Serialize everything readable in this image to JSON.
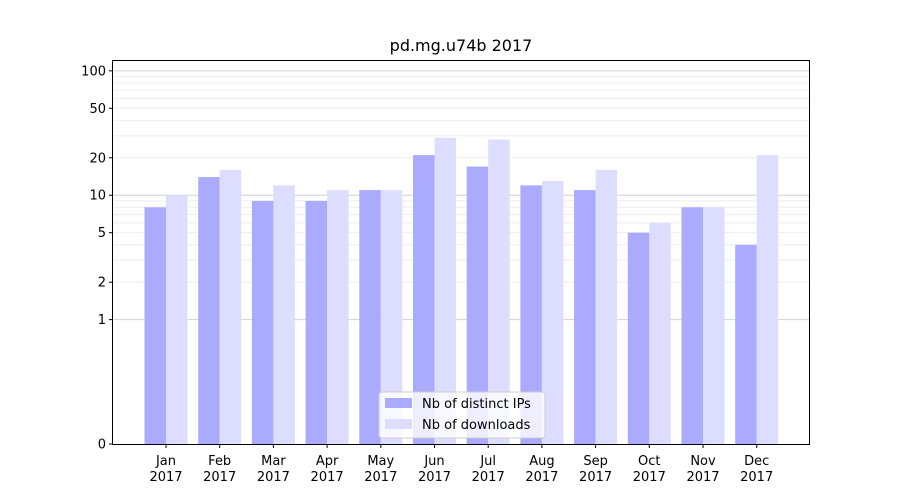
{
  "chart_data": {
    "type": "bar",
    "title": "pd.mg.u74b 2017",
    "xlabel": "",
    "ylabel": "",
    "y_scale": "symlog",
    "ylim": [
      0,
      120
    ],
    "y_ticks": [
      0,
      1,
      2,
      5,
      10,
      20,
      50,
      100
    ],
    "y_tick_labels": [
      "0",
      "1",
      "2",
      "5",
      "10",
      "20",
      "50",
      "100"
    ],
    "categories": [
      [
        "Jan",
        "2017"
      ],
      [
        "Feb",
        "2017"
      ],
      [
        "Mar",
        "2017"
      ],
      [
        "Apr",
        "2017"
      ],
      [
        "May",
        "2017"
      ],
      [
        "Jun",
        "2017"
      ],
      [
        "Jul",
        "2017"
      ],
      [
        "Aug",
        "2017"
      ],
      [
        "Sep",
        "2017"
      ],
      [
        "Oct",
        "2017"
      ],
      [
        "Nov",
        "2017"
      ],
      [
        "Dec",
        "2017"
      ]
    ],
    "series": [
      {
        "name": "Nb of distinct IPs",
        "color": "#aaaaff",
        "values": [
          8,
          14,
          9,
          9,
          11,
          21,
          17,
          12,
          11,
          5,
          8,
          4
        ]
      },
      {
        "name": "Nb of downloads",
        "color": "#ddddff",
        "values": [
          10,
          16,
          12,
          11,
          11,
          29,
          28,
          13,
          16,
          6,
          8,
          21
        ]
      }
    ],
    "grid": true,
    "legend_position": "bottom-center"
  }
}
